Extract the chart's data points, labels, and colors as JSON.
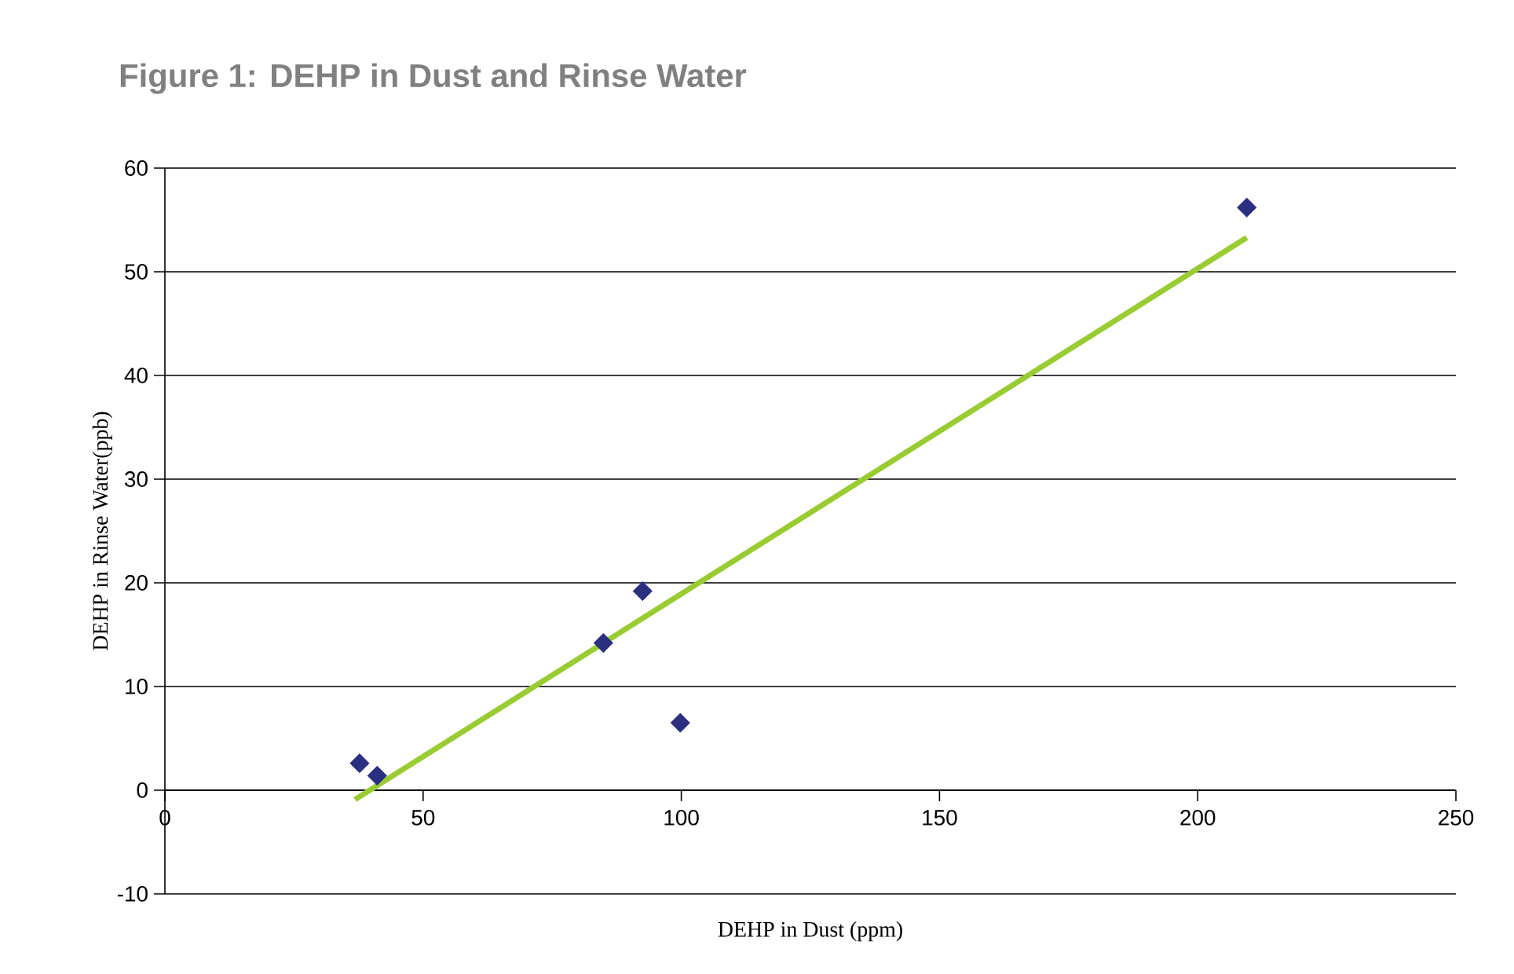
{
  "chart_data": {
    "type": "scatter",
    "title": "Figure 1: DEHP in Dust and Rinse Water",
    "xlabel": "DEHP in Dust (ppm)",
    "ylabel": "DEHP in Rinse Water(ppb)",
    "xlim": [
      0,
      250
    ],
    "ylim": [
      -10,
      60
    ],
    "xticks": [
      0,
      50,
      100,
      150,
      200,
      250
    ],
    "yticks": [
      -10,
      0,
      10,
      20,
      30,
      40,
      50,
      60
    ],
    "grid": "y",
    "series": [
      {
        "color": "#2b2f7f",
        "marker": "diamond",
        "x": [
          37.7,
          41.1,
          84.9,
          92.5,
          99.8,
          209.5
        ],
        "values": [
          2.6,
          1.4,
          14.2,
          19.2,
          6.5,
          56.2
        ]
      },
      {
        "type": "line",
        "color": "#99cc33",
        "marker": "none",
        "line_style": "solid",
        "x": [
          36.8,
          209.5
        ],
        "values": [
          -0.9,
          53.3
        ]
      }
    ]
  }
}
